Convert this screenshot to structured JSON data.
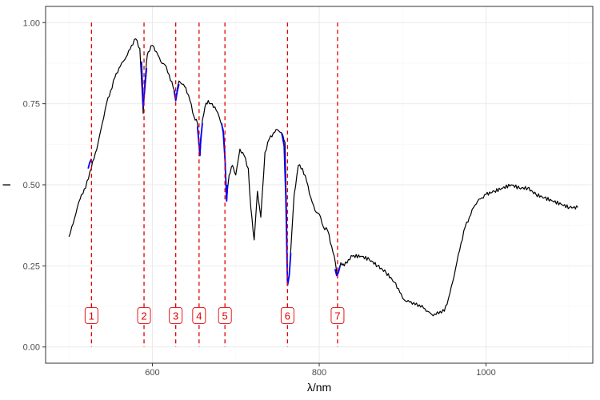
{
  "chart_data": {
    "type": "line",
    "title": "",
    "xlabel": "λ/nm",
    "ylabel": "I",
    "xlim": [
      472,
      1128
    ],
    "ylim": [
      -0.05,
      1.05
    ],
    "x_ticks": [
      600,
      800,
      1000
    ],
    "x_tick_labels": [
      "600",
      "800",
      "1000"
    ],
    "y_ticks": [
      0,
      0.25,
      0.5,
      0.75,
      1
    ],
    "y_tick_labels": [
      "0.00",
      "0.25",
      "0.50",
      "0.75",
      "1.00"
    ],
    "grid": true,
    "legend": "none",
    "series": [
      {
        "color": "#000000",
        "x": [
          500,
          505,
          510,
          515,
          520,
          525,
          530,
          535,
          540,
          545,
          550,
          555,
          560,
          565,
          570,
          575,
          580,
          585,
          587,
          589,
          591,
          593,
          595,
          600,
          605,
          610,
          615,
          620,
          625,
          628,
          632,
          636,
          640,
          645,
          650,
          654,
          657,
          660,
          663,
          667,
          670,
          675,
          680,
          685,
          687,
          689,
          692,
          696,
          700,
          705,
          710,
          715,
          718,
          722,
          726,
          730,
          735,
          740,
          745,
          750,
          755,
          759,
          761,
          762,
          764,
          766,
          770,
          775,
          780,
          785,
          790,
          795,
          800,
          805,
          810,
          815,
          818,
          822,
          826,
          830,
          835,
          840,
          850,
          860,
          870,
          880,
          890,
          895,
          900,
          905,
          910,
          915,
          920,
          925,
          930,
          935,
          940,
          945,
          950,
          955,
          960,
          965,
          970,
          975,
          980,
          985,
          990,
          995,
          1000,
          1010,
          1020,
          1030,
          1040,
          1050,
          1060,
          1070,
          1080,
          1090,
          1100,
          1110
        ],
        "y": [
          0.34,
          0.38,
          0.43,
          0.47,
          0.49,
          0.54,
          0.58,
          0.63,
          0.69,
          0.75,
          0.79,
          0.83,
          0.86,
          0.88,
          0.9,
          0.93,
          0.95,
          0.92,
          0.82,
          0.72,
          0.82,
          0.88,
          0.91,
          0.93,
          0.91,
          0.88,
          0.87,
          0.84,
          0.8,
          0.77,
          0.82,
          0.81,
          0.8,
          0.76,
          0.71,
          0.69,
          0.59,
          0.7,
          0.74,
          0.76,
          0.75,
          0.74,
          0.71,
          0.67,
          0.6,
          0.45,
          0.53,
          0.56,
          0.53,
          0.61,
          0.59,
          0.55,
          0.43,
          0.33,
          0.48,
          0.4,
          0.6,
          0.64,
          0.66,
          0.67,
          0.66,
          0.63,
          0.4,
          0.19,
          0.22,
          0.3,
          0.47,
          0.56,
          0.55,
          0.51,
          0.46,
          0.42,
          0.41,
          0.37,
          0.36,
          0.31,
          0.28,
          0.22,
          0.26,
          0.25,
          0.27,
          0.28,
          0.28,
          0.27,
          0.25,
          0.23,
          0.2,
          0.18,
          0.15,
          0.14,
          0.14,
          0.13,
          0.13,
          0.12,
          0.11,
          0.1,
          0.1,
          0.11,
          0.11,
          0.15,
          0.2,
          0.26,
          0.32,
          0.37,
          0.4,
          0.43,
          0.45,
          0.46,
          0.47,
          0.48,
          0.49,
          0.5,
          0.49,
          0.49,
          0.47,
          0.46,
          0.45,
          0.44,
          0.43,
          0.43
        ]
      },
      {
        "color": "#0000ff",
        "segments": [
          {
            "x": [
              523,
              525,
              527
            ],
            "y": [
              0.55,
              0.57,
              0.58
            ]
          },
          {
            "x": [
              587,
              589,
              591,
              593
            ],
            "y": [
              0.88,
              0.74,
              0.8,
              0.86
            ]
          },
          {
            "x": [
              626,
              628,
              630,
              632
            ],
            "y": [
              0.79,
              0.76,
              0.79,
              0.81
            ]
          },
          {
            "x": [
              654,
              656,
              657,
              658,
              660
            ],
            "y": [
              0.68,
              0.62,
              0.59,
              0.64,
              0.69
            ]
          },
          {
            "x": [
              683,
              685,
              687,
              689,
              690
            ],
            "y": [
              0.69,
              0.66,
              0.58,
              0.45,
              0.5
            ]
          },
          {
            "x": [
              755,
              758,
              760,
              762,
              764,
              766
            ],
            "y": [
              0.66,
              0.62,
              0.46,
              0.19,
              0.22,
              0.29
            ]
          },
          {
            "x": [
              819,
              821,
              823,
              825
            ],
            "y": [
              0.24,
              0.22,
              0.23,
              0.25
            ]
          }
        ]
      }
    ],
    "markers": [
      {
        "label": "1",
        "x": 527
      },
      {
        "label": "2",
        "x": 590
      },
      {
        "label": "3",
        "x": 628
      },
      {
        "label": "4",
        "x": 656
      },
      {
        "label": "5",
        "x": 687
      },
      {
        "label": "6",
        "x": 762
      },
      {
        "label": "7",
        "x": 822
      }
    ],
    "marker_label_y": 0.097,
    "colors": {
      "marker": "#e00000",
      "grid_major": "#ebebeb",
      "grid_minor": "#f5f5f5",
      "panel_border": "#333333"
    }
  }
}
